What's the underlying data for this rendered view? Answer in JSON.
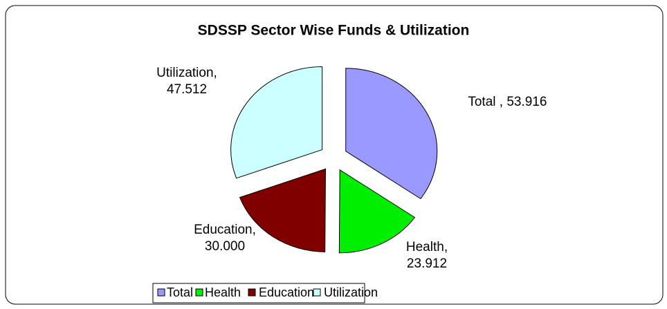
{
  "chart_data": {
    "type": "pie",
    "title": "SDSSP Sector Wise Funds & Utilization",
    "categories": [
      "Total",
      "Health",
      "Education",
      "Utilization"
    ],
    "values": [
      53.916,
      23.912,
      30.0,
      47.512
    ],
    "value_labels": [
      "Total , 53.916",
      "Health,\n23.912",
      "Education,\n30.000",
      "Utilization,\n47.512"
    ],
    "colors": [
      "#9999ff",
      "#00ee00",
      "#800000",
      "#ccffff"
    ],
    "legend": "bottom"
  }
}
